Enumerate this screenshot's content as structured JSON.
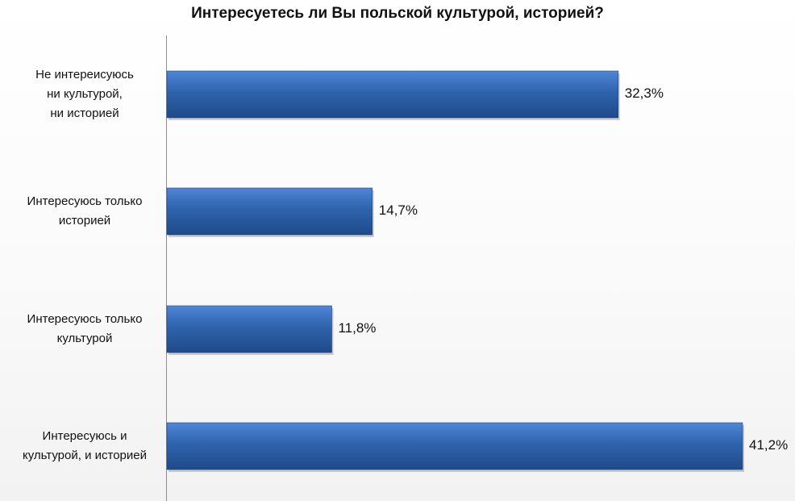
{
  "chart_data": {
    "type": "bar",
    "orientation": "horizontal",
    "title": "Интересуетесь ли Вы польской культурой,  историей?",
    "categories": [
      "Не интереисуюсь ни культурой, ни историей",
      "Интересуюсь только историей",
      "Интересуюсь только культурой",
      "Интересуюсь и культурой, и историей"
    ],
    "values": [
      32.3,
      14.7,
      11.8,
      41.2
    ],
    "value_labels": [
      "32,3%",
      "14,7%",
      "11,8%",
      "41,2%"
    ],
    "unit": "%",
    "xlim": [
      0,
      41.2
    ],
    "grid": false,
    "legend": "none",
    "bar_color": "#2e63ad"
  }
}
